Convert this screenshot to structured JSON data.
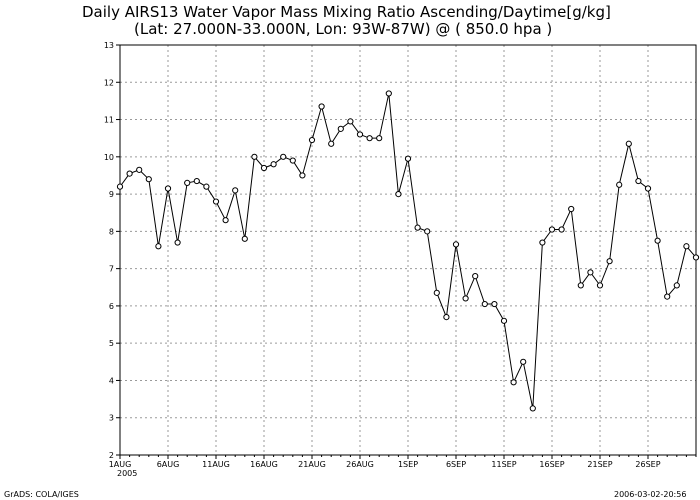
{
  "chart_data": {
    "type": "line",
    "title": "Daily AIRS13 Water Vapor Mass Mixing Ratio Ascending/Daytime[g/kg]",
    "subtitle": "(Lat: 27.000N-33.000N, Lon: 93W-87W) @ ( 850.0 hpa )",
    "xlabel": "",
    "ylabel": "",
    "ylim": [
      2,
      13
    ],
    "y_ticks": [
      "2",
      "3",
      "4",
      "5",
      "6",
      "7",
      "8",
      "9",
      "10",
      "11",
      "12",
      "13"
    ],
    "x_tick_labels": [
      "1AUG",
      "6AUG",
      "11AUG",
      "16AUG",
      "21AUG",
      "26AUG",
      "1SEP",
      "6SEP",
      "11SEP",
      "16SEP",
      "21SEP",
      "26SEP"
    ],
    "x_year_label": "2005",
    "grid": true,
    "series": [
      {
        "x": [
          "2005-08-01",
          "2005-08-02",
          "2005-08-03",
          "2005-08-04",
          "2005-08-05",
          "2005-08-06",
          "2005-08-07",
          "2005-08-08",
          "2005-08-09",
          "2005-08-10",
          "2005-08-11",
          "2005-08-12",
          "2005-08-13",
          "2005-08-14",
          "2005-08-15",
          "2005-08-16",
          "2005-08-17",
          "2005-08-18",
          "2005-08-19",
          "2005-08-20",
          "2005-08-21",
          "2005-08-22",
          "2005-08-23",
          "2005-08-24",
          "2005-08-25",
          "2005-08-26",
          "2005-08-27",
          "2005-08-28",
          "2005-08-29",
          "2005-08-30",
          "2005-08-31",
          "2005-09-01",
          "2005-09-02",
          "2005-09-03",
          "2005-09-04",
          "2005-09-05",
          "2005-09-06",
          "2005-09-07",
          "2005-09-08",
          "2005-09-09",
          "2005-09-10",
          "2005-09-11",
          "2005-09-12",
          "2005-09-13",
          "2005-09-14",
          "2005-09-15",
          "2005-09-16",
          "2005-09-17",
          "2005-09-18",
          "2005-09-19",
          "2005-09-20",
          "2005-09-21",
          "2005-09-22",
          "2005-09-23",
          "2005-09-24",
          "2005-09-25",
          "2005-09-26",
          "2005-09-27",
          "2005-09-28",
          "2005-09-29",
          "2005-09-30"
        ],
        "values": [
          9.2,
          9.55,
          9.65,
          9.4,
          7.6,
          9.15,
          7.7,
          9.3,
          9.35,
          9.2,
          8.8,
          8.3,
          9.1,
          7.8,
          10.0,
          9.7,
          9.8,
          10.0,
          9.9,
          9.5,
          10.45,
          11.35,
          10.35,
          10.75,
          10.95,
          10.6,
          10.5,
          10.5,
          11.7,
          9.0,
          9.95,
          8.1,
          8.0,
          6.35,
          5.7,
          7.65,
          6.2,
          6.8,
          6.05,
          6.05,
          5.6,
          3.95,
          4.5,
          3.25,
          7.7,
          8.05,
          8.05,
          8.6,
          6.55,
          6.9,
          6.55,
          7.2,
          9.25,
          10.35,
          9.35,
          9.15,
          7.75,
          6.25,
          6.55,
          7.6,
          7.3
        ]
      }
    ]
  },
  "footer": {
    "left": "GrADS: COLA/IGES",
    "right": "2006-03-02-20:56"
  }
}
